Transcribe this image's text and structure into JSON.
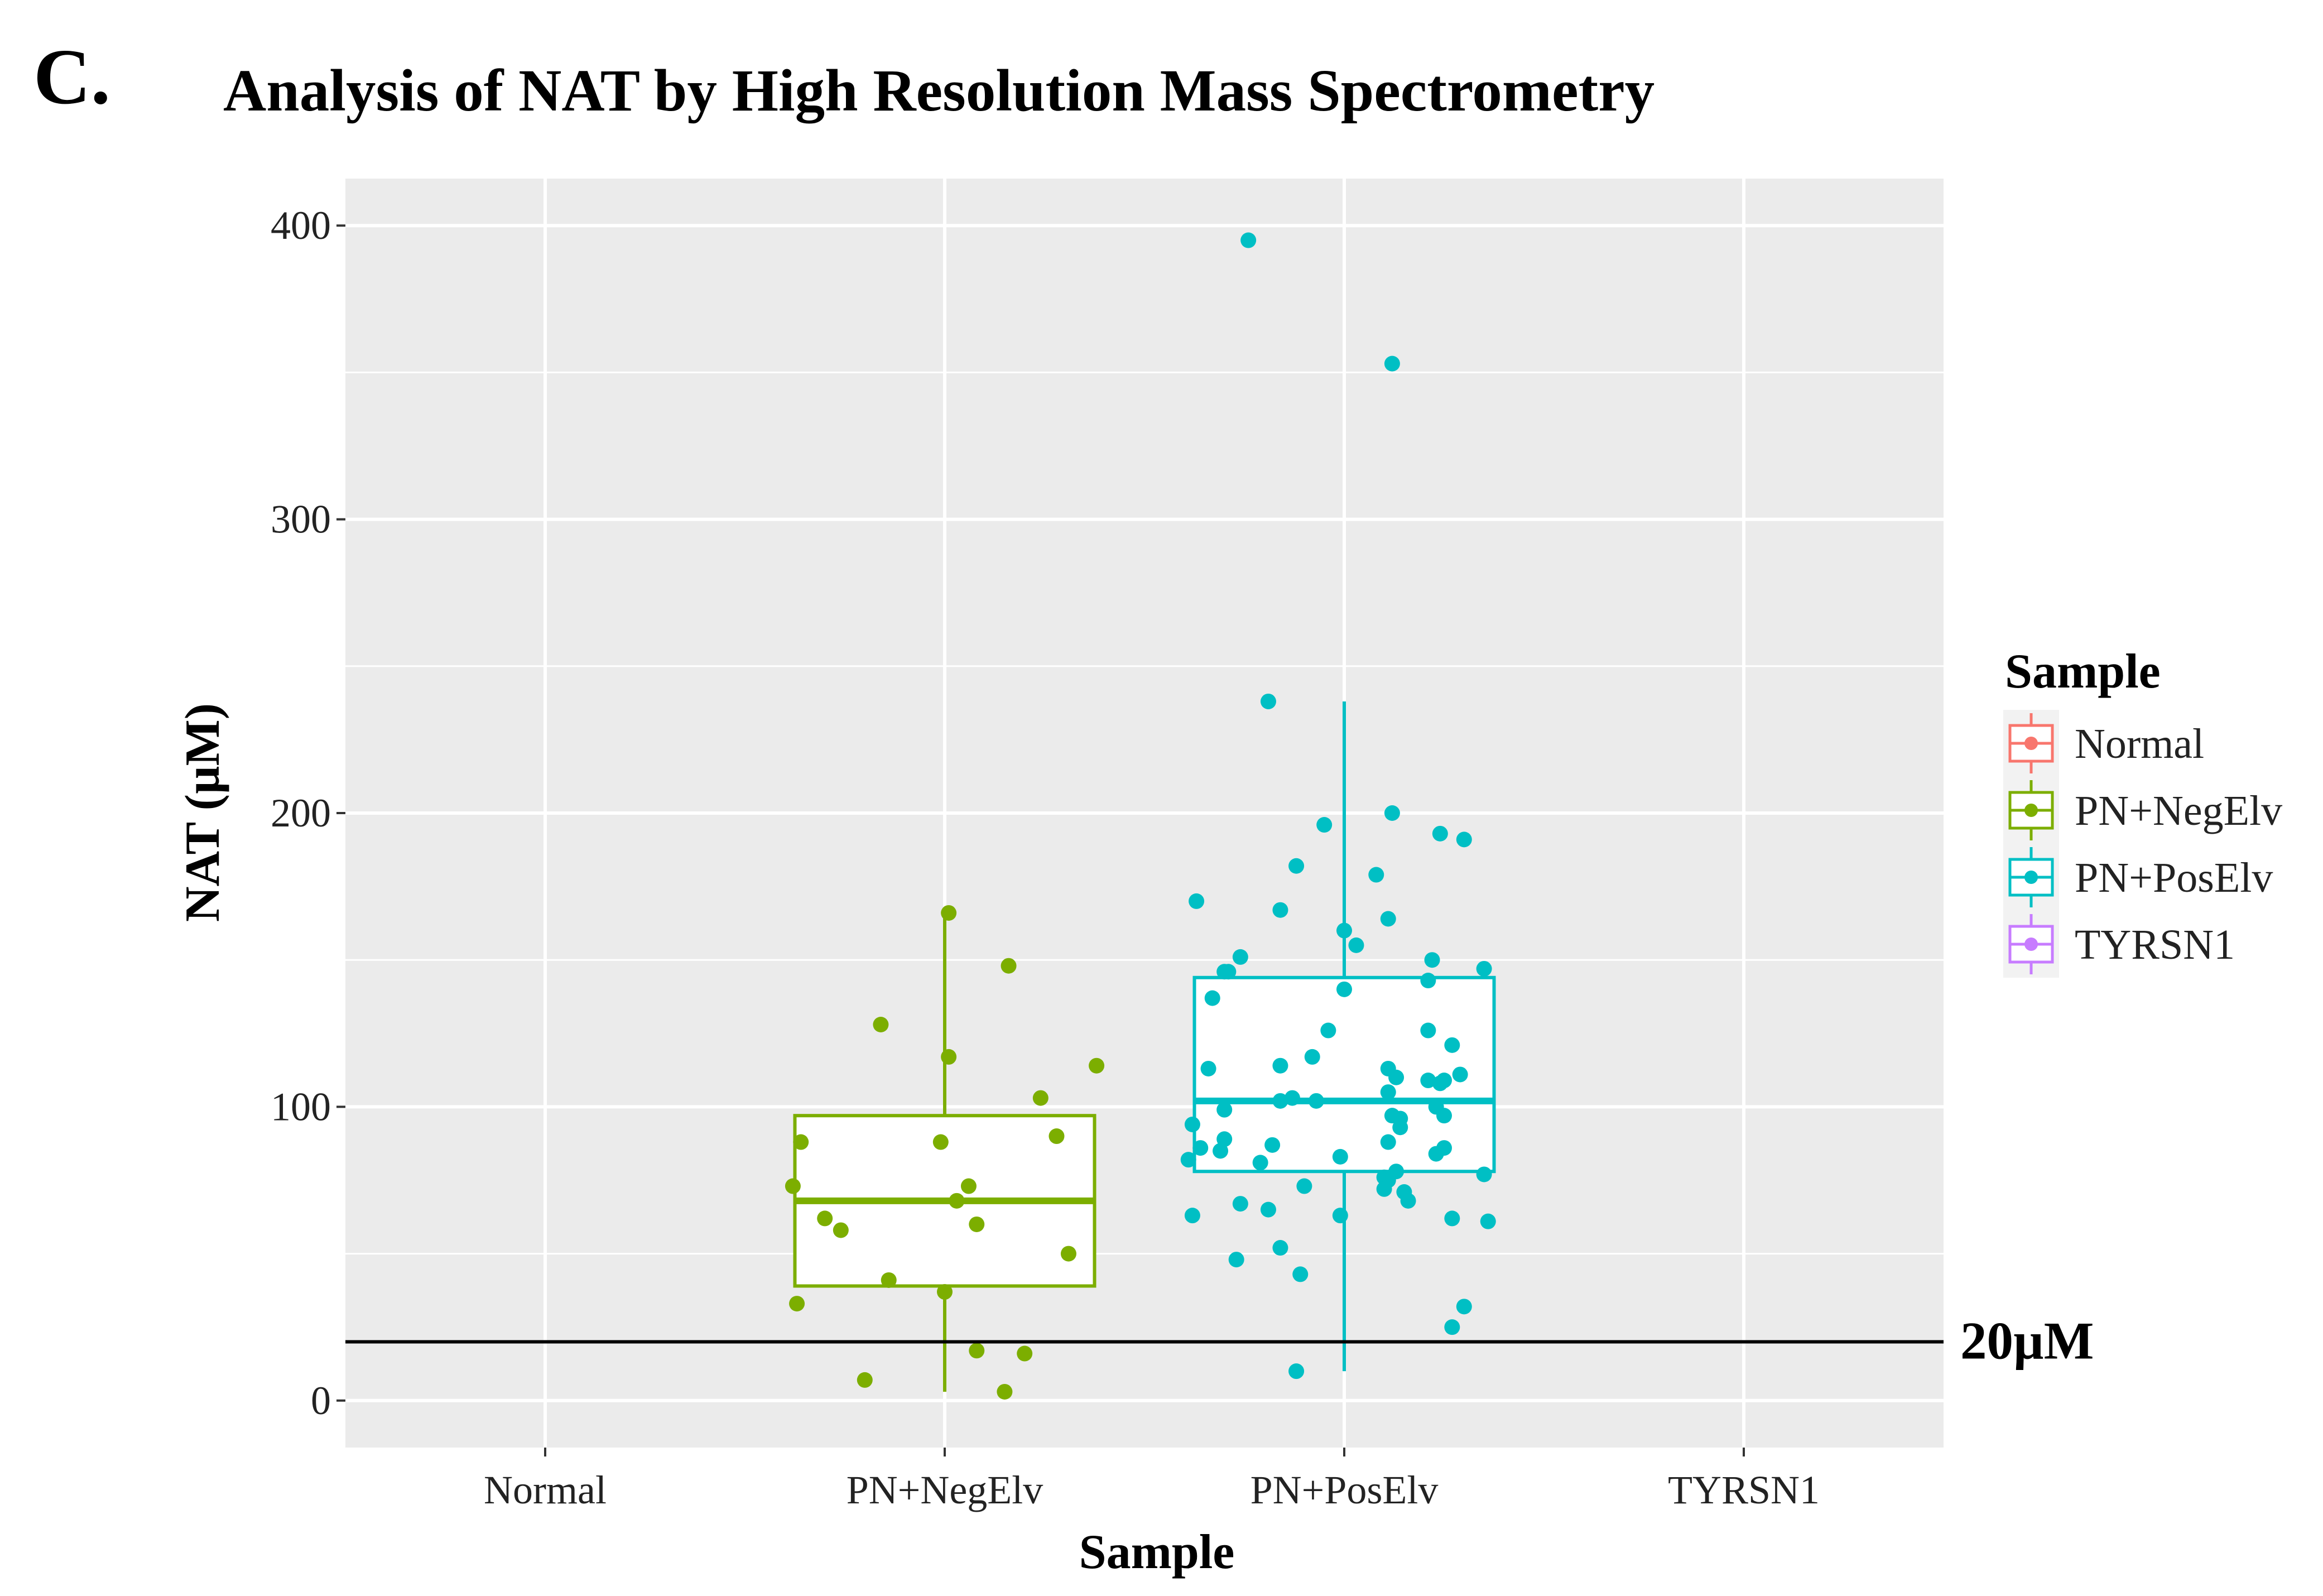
{
  "panel_label": "C.",
  "chart_data": {
    "type": "box+scatter",
    "title": "Analysis of NAT by High Resolution Mass Spectrometry",
    "xlabel": "Sample",
    "ylabel": "NAT (µM)",
    "categories": [
      "Normal",
      "PN+NegElv",
      "PN+PosElv",
      "TYRSN1"
    ],
    "ylim": [
      -16,
      416
    ],
    "yticks": [
      0,
      100,
      200,
      300,
      400
    ],
    "grid": true,
    "reference_line": {
      "value": 20,
      "label": "20µM"
    },
    "colors": {
      "Normal": "#F8766D",
      "PN+NegElv": "#7CAE00",
      "PN+PosElv": "#00BFC4",
      "TYRSN1": "#C77CFF"
    },
    "boxes": [
      {
        "category": "PN+NegElv",
        "whisker_low": 3,
        "q1": 39,
        "median": 68,
        "q3": 97,
        "whisker_high": 166
      },
      {
        "category": "PN+PosElv",
        "whisker_low": 10,
        "q1": 78,
        "median": 102,
        "q3": 144,
        "whisker_high": 238
      }
    ],
    "points": [
      {
        "category": "PN+NegElv",
        "values": [
          166,
          148,
          128,
          117,
          114,
          103,
          90,
          88,
          88,
          73,
          73,
          68,
          62,
          60,
          58,
          50,
          41,
          37,
          33,
          17,
          16,
          7,
          3
        ],
        "jitter": [
          0.01,
          0.16,
          -0.16,
          0.01,
          0.38,
          0.24,
          0.28,
          -0.36,
          -0.01,
          -0.38,
          0.06,
          0.03,
          -0.3,
          0.08,
          -0.26,
          0.31,
          -0.14,
          0.0,
          -0.37,
          0.08,
          0.2,
          -0.2,
          0.15
        ]
      },
      {
        "category": "PN+PosElv",
        "values": [
          395,
          353,
          238,
          200,
          196,
          193,
          191,
          182,
          179,
          170,
          167,
          164,
          160,
          155,
          150,
          151,
          147,
          146,
          146,
          143,
          140,
          137,
          126,
          126,
          121,
          117,
          114,
          113,
          113,
          111,
          110,
          109,
          109,
          108,
          105,
          103,
          102,
          102,
          100,
          99,
          97,
          97,
          96,
          94,
          93,
          89,
          88,
          87,
          86,
          86,
          85,
          84,
          83,
          82,
          81,
          78,
          77,
          76,
          75,
          73,
          72,
          71,
          68,
          67,
          65,
          63,
          63,
          62,
          61,
          52,
          48,
          43,
          32,
          25,
          10
        ],
        "jitter": [
          -0.24,
          0.12,
          -0.19,
          0.12,
          -0.05,
          0.24,
          0.3,
          -0.12,
          0.08,
          -0.37,
          -0.16,
          0.11,
          0.0,
          0.03,
          0.22,
          -0.26,
          0.35,
          -0.3,
          -0.29,
          0.21,
          0.0,
          -0.33,
          -0.04,
          0.21,
          0.27,
          -0.08,
          -0.16,
          -0.34,
          0.11,
          0.29,
          0.13,
          0.21,
          0.25,
          0.24,
          0.11,
          -0.13,
          -0.07,
          -0.16,
          0.23,
          -0.3,
          0.25,
          0.12,
          0.14,
          -0.38,
          0.14,
          -0.3,
          0.11,
          -0.18,
          0.25,
          -0.36,
          -0.31,
          0.23,
          -0.01,
          -0.39,
          -0.21,
          0.13,
          0.35,
          0.1,
          0.11,
          -0.1,
          0.1,
          0.15,
          0.16,
          -0.26,
          -0.19,
          -0.01,
          -0.38,
          0.27,
          0.36,
          -0.16,
          -0.27,
          -0.11,
          0.3,
          0.27,
          -0.12
        ]
      }
    ],
    "legend": {
      "title": "Sample",
      "position": "right",
      "items": [
        "Normal",
        "PN+NegElv",
        "PN+PosElv",
        "TYRSN1"
      ]
    }
  }
}
